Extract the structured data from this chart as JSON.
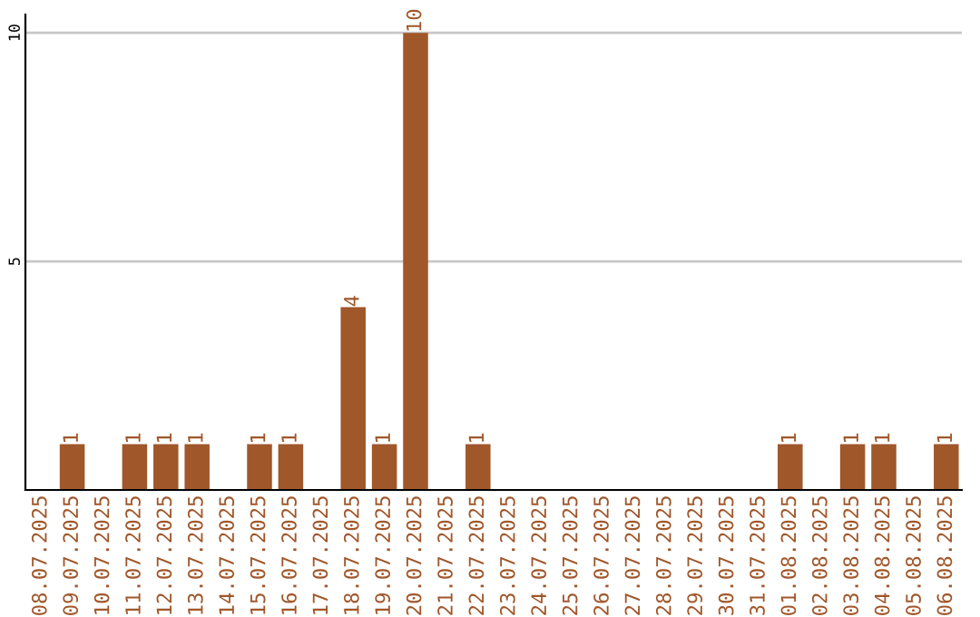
{
  "chart_data": {
    "type": "bar",
    "categories": [
      "08.07.2025",
      "09.07.2025",
      "10.07.2025",
      "11.07.2025",
      "12.07.2025",
      "13.07.2025",
      "14.07.2025",
      "15.07.2025",
      "16.07.2025",
      "17.07.2025",
      "18.07.2025",
      "19.07.2025",
      "20.07.2025",
      "21.07.2025",
      "22.07.2025",
      "23.07.2025",
      "24.07.2025",
      "25.07.2025",
      "26.07.2025",
      "27.07.2025",
      "28.07.2025",
      "29.07.2025",
      "30.07.2025",
      "31.07.2025",
      "01.08.2025",
      "02.08.2025",
      "03.08.2025",
      "04.08.2025",
      "05.08.2025",
      "06.08.2025"
    ],
    "values": [
      0,
      1,
      0,
      1,
      1,
      1,
      0,
      1,
      1,
      0,
      4,
      1,
      10,
      0,
      1,
      0,
      0,
      0,
      0,
      0,
      0,
      0,
      0,
      0,
      1,
      0,
      1,
      1,
      0,
      1
    ],
    "value_labels": [
      null,
      "1",
      null,
      "1",
      "1",
      "1",
      null,
      "1",
      "1",
      null,
      "4",
      "1",
      "10",
      null,
      "1",
      null,
      null,
      null,
      null,
      null,
      null,
      null,
      null,
      null,
      "1",
      null,
      "1",
      "1",
      null,
      "1"
    ],
    "color": "#a0572a",
    "ylim": [
      0,
      10.4
    ],
    "yticks": [
      5,
      10
    ],
    "grid": "y"
  }
}
